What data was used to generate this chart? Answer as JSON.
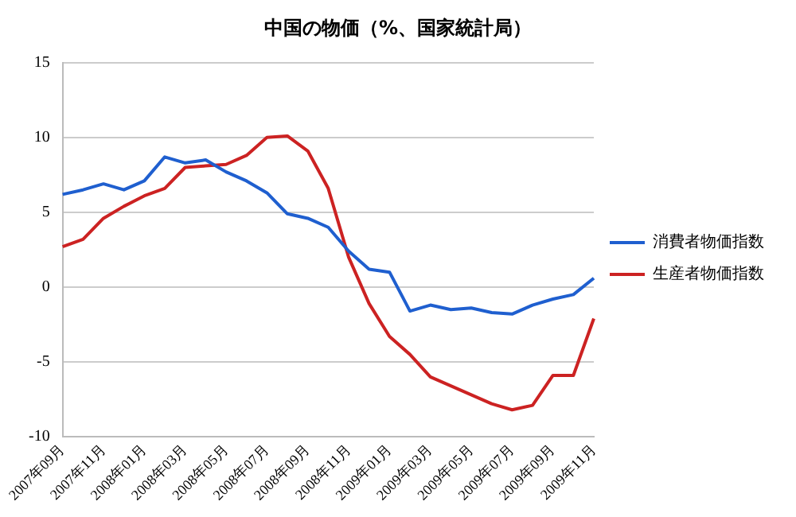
{
  "chart_data": {
    "type": "line",
    "title": "中国の物価（%、国家統計局）",
    "categories": [
      "2007年09月",
      null,
      "2007年11月",
      null,
      "2008年01月",
      null,
      "2008年03月",
      null,
      "2008年05月",
      null,
      "2008年07月",
      null,
      "2008年09月",
      null,
      "2008年11月",
      null,
      "2009年01月",
      null,
      "2009年03月",
      null,
      "2009年05月",
      null,
      "2009年07月",
      null,
      "2009年09月",
      null,
      "2009年11月"
    ],
    "series": [
      {
        "name": "消費者物価指数",
        "color": "#1f5fcf",
        "values": [
          6.2,
          6.5,
          6.9,
          6.5,
          7.1,
          8.7,
          8.3,
          8.5,
          7.7,
          7.1,
          6.3,
          4.9,
          4.6,
          4.0,
          2.4,
          1.2,
          1.0,
          -1.6,
          -1.2,
          -1.5,
          -1.4,
          -1.7,
          -1.8,
          -1.2,
          -0.8,
          -0.5,
          0.6
        ]
      },
      {
        "name": "生産者物価指数",
        "color": "#cc2222",
        "values": [
          2.7,
          3.2,
          4.6,
          5.4,
          6.1,
          6.6,
          8.0,
          8.1,
          8.2,
          8.8,
          10.0,
          10.1,
          9.1,
          6.6,
          2.0,
          -1.1,
          -3.3,
          -4.5,
          -6.0,
          -6.6,
          -7.2,
          -7.8,
          -8.2,
          -7.9,
          -5.9,
          -5.9,
          -2.1
        ]
      }
    ],
    "ylim": [
      -10,
      15
    ],
    "yticks": [
      -10,
      -5,
      0,
      5,
      10,
      15
    ],
    "grid": "y",
    "legend": "right",
    "marker": "none",
    "line_style": "solid"
  }
}
